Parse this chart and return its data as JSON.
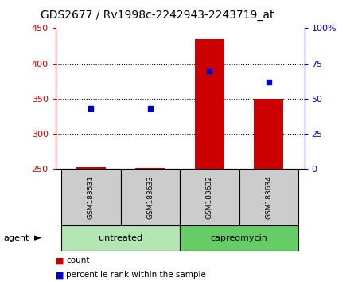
{
  "title": "GDS2677 / Rv1998c-2242943-2243719_at",
  "samples": [
    "GSM183531",
    "GSM183633",
    "GSM183632",
    "GSM183634"
  ],
  "groups": [
    "untreated",
    "untreated",
    "capreomycin",
    "capreomycin"
  ],
  "group_labels": [
    "untreated",
    "capreomycin"
  ],
  "group_colors": [
    "#b3e6b3",
    "#66cc66"
  ],
  "counts": [
    253,
    252,
    435,
    350
  ],
  "percentile_ranks": [
    43,
    43,
    70,
    62
  ],
  "ylim_left": [
    250,
    450
  ],
  "ylim_right": [
    0,
    100
  ],
  "yticks_left": [
    250,
    300,
    350,
    400,
    450
  ],
  "yticks_right": [
    0,
    25,
    50,
    75,
    100
  ],
  "bar_color": "#cc0000",
  "dot_color": "#0000cc",
  "bar_base": 250,
  "agent_label": "agent",
  "legend_count_label": "count",
  "legend_pct_label": "percentile rank within the sample",
  "title_fontsize": 10,
  "tick_fontsize": 8,
  "sample_box_color": "#cccccc",
  "left_axis_color": "#cc0000",
  "right_axis_color": "#0000cc",
  "group_spans": [
    [
      0,
      1,
      "untreated",
      "#b3e6b3"
    ],
    [
      2,
      3,
      "capreomycin",
      "#66cc66"
    ]
  ]
}
